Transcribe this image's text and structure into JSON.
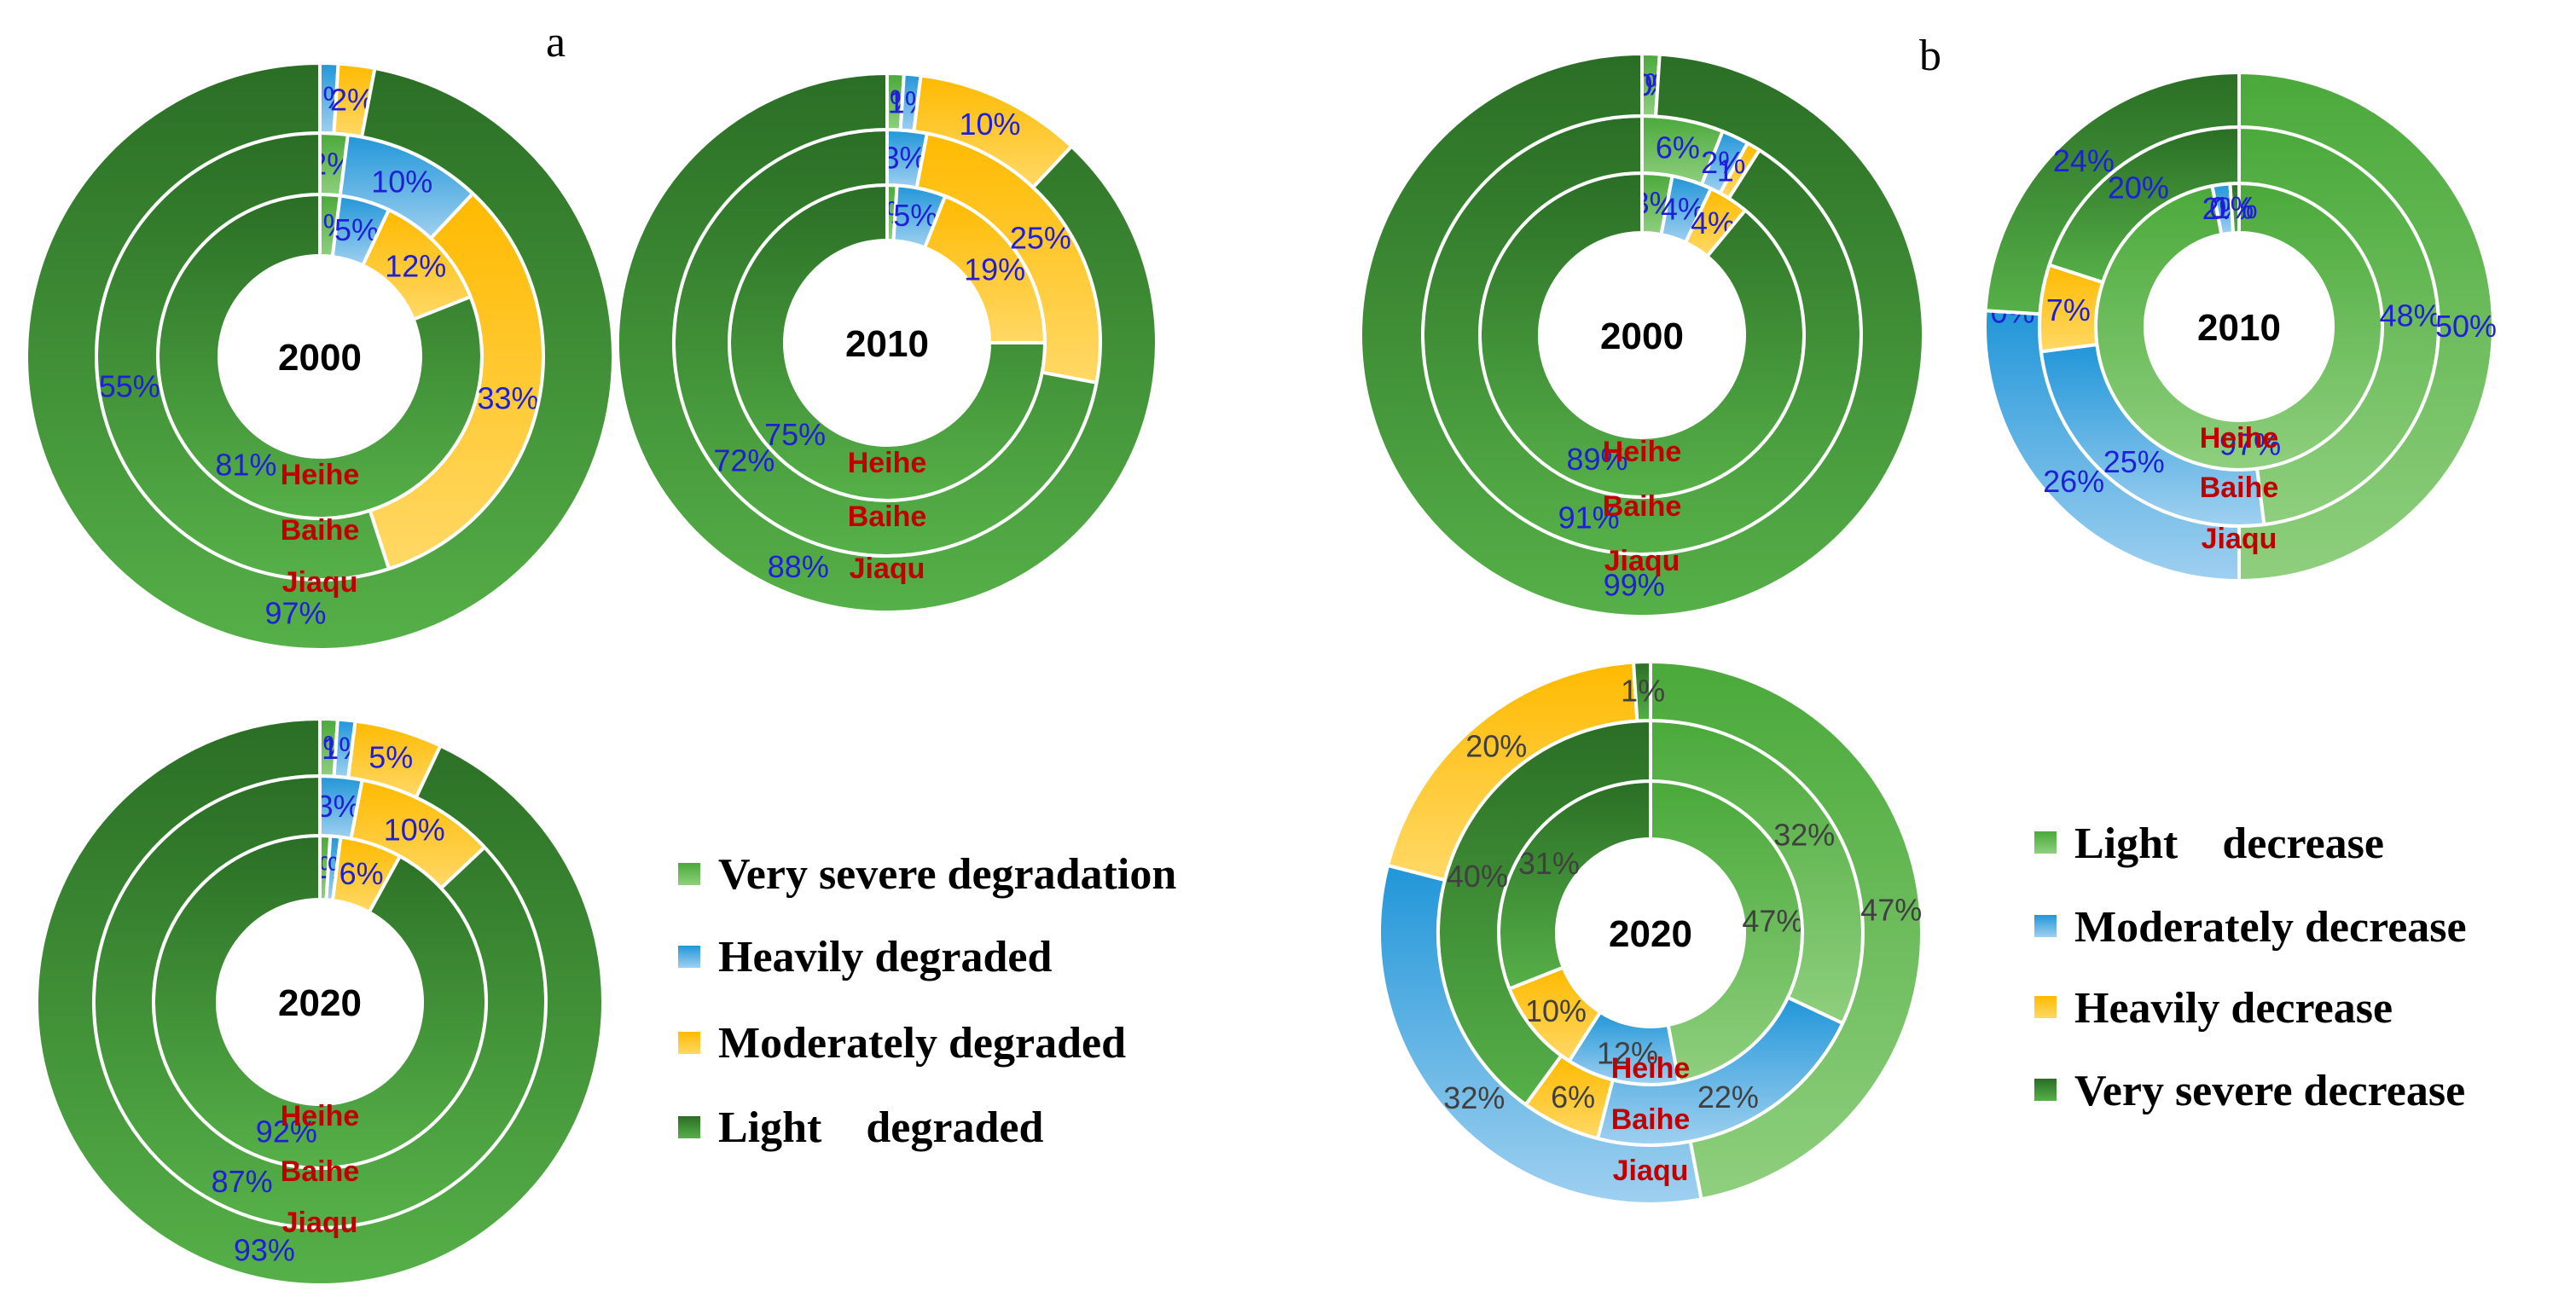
{
  "panel_labels": [
    "a",
    "b"
  ],
  "colors": {
    "light_green": "#5fb04a",
    "blue": "#46a3db",
    "yellow": "#ffc20e",
    "dark_green": "#2e7a2c",
    "region_text": "#c00000",
    "pct_blue": "#1f1fd6",
    "pct_dark": "#404040"
  },
  "legend_a": [
    "Very severe degradation",
    "Heavily degraded",
    "Moderately degraded",
    "Light    degraded"
  ],
  "legend_b": [
    "Light    decrease",
    "Moderately decrease",
    "Heavily decrease",
    "Very severe decrease"
  ],
  "chart_data": [
    {
      "type": "pie",
      "panel": "a",
      "center_label": "2000",
      "categories": [
        "Very severe degradation",
        "Heavily degraded",
        "Moderately degraded",
        "Light    degraded"
      ],
      "series": [
        {
          "name": "Heihe",
          "values": [
            2,
            5,
            12,
            81
          ],
          "labels": [
            "2%",
            "5%",
            "12%",
            "81%"
          ]
        },
        {
          "name": "Baihe",
          "values": [
            2,
            10,
            33,
            55
          ],
          "labels": [
            "2%",
            "10%",
            "33%",
            "55%"
          ]
        },
        {
          "name": "Jiaqu",
          "values": [
            0,
            1,
            2,
            97
          ],
          "labels": [
            "0%",
            "1%",
            "2%",
            "97%"
          ]
        }
      ]
    },
    {
      "type": "pie",
      "panel": "a",
      "center_label": "2010",
      "categories": [
        "Very severe degradation",
        "Heavily degraded",
        "Moderately degraded",
        "Light    degraded"
      ],
      "series": [
        {
          "name": "Heihe",
          "values": [
            1,
            5,
            19,
            75
          ],
          "labels": [
            "1%",
            "5%",
            "19%",
            "75%"
          ]
        },
        {
          "name": "Baihe",
          "values": [
            0,
            3,
            25,
            72
          ],
          "labels": [
            "0%",
            "3%",
            "25%",
            "72%"
          ]
        },
        {
          "name": "Jiaqu",
          "values": [
            1,
            1,
            10,
            88
          ],
          "labels": [
            "1%",
            "1%",
            "10%",
            "88%"
          ]
        }
      ]
    },
    {
      "type": "pie",
      "panel": "a",
      "center_label": "2020",
      "categories": [
        "Very severe degradation",
        "Heavily degraded",
        "Moderately degraded",
        "Light    degraded"
      ],
      "series": [
        {
          "name": "Heihe",
          "values": [
            1,
            1,
            6,
            92
          ],
          "labels": [
            "1%",
            "1%",
            "6%",
            "92%"
          ]
        },
        {
          "name": "Baihe",
          "values": [
            0,
            3,
            10,
            87
          ],
          "labels": [
            "0%",
            "3%",
            "10%",
            "87%"
          ]
        },
        {
          "name": "Jiaqu",
          "values": [
            1,
            1,
            5,
            93
          ],
          "labels": [
            "1%",
            "1%",
            "5%",
            "93%"
          ]
        }
      ]
    },
    {
      "type": "pie",
      "panel": "b",
      "center_label": "2000",
      "categories": [
        "Light    decrease",
        "Moderately decrease",
        "Heavily decrease",
        "Very severe decrease"
      ],
      "series": [
        {
          "name": "Heihe",
          "values": [
            3,
            4,
            4,
            89
          ],
          "labels": [
            "3%",
            "4%",
            "4%",
            "89%"
          ]
        },
        {
          "name": "Baihe",
          "values": [
            6,
            2,
            1,
            91
          ],
          "labels": [
            "6%",
            "2%",
            "1%",
            "91%"
          ]
        },
        {
          "name": "Jiaqu",
          "values": [
            1,
            0,
            0,
            99
          ],
          "labels": [
            "1%",
            "0%",
            "0%",
            "99%"
          ]
        }
      ]
    },
    {
      "type": "pie",
      "panel": "b",
      "center_label": "2010",
      "categories": [
        "Light    decrease",
        "Moderately decrease",
        "Heavily decrease",
        "Very severe decrease"
      ],
      "series": [
        {
          "name": "Heihe",
          "values": [
            97,
            2,
            0,
            1
          ],
          "labels": [
            "97%",
            "2%",
            "0%",
            "1%"
          ]
        },
        {
          "name": "Baihe",
          "values": [
            48,
            25,
            7,
            20
          ],
          "labels": [
            "48%",
            "25%",
            "7%",
            "20%"
          ]
        },
        {
          "name": "Jiaqu",
          "values": [
            50,
            26,
            0,
            24
          ],
          "labels": [
            "50%",
            "26%",
            "0%",
            "24%"
          ]
        }
      ]
    },
    {
      "type": "pie",
      "panel": "b",
      "center_label": "2020",
      "categories": [
        "Light    decrease",
        "Moderately decrease",
        "Heavily decrease",
        "Very severe decrease"
      ],
      "series": [
        {
          "name": "Heihe",
          "values": [
            47,
            12,
            10,
            31
          ],
          "labels": [
            "47%",
            "12%",
            "10%",
            "31%"
          ]
        },
        {
          "name": "Baihe",
          "values": [
            32,
            22,
            6,
            40
          ],
          "labels": [
            "32%",
            "22%",
            "6%",
            "40%"
          ]
        },
        {
          "name": "Jiaqu",
          "values": [
            47,
            32,
            20,
            1
          ],
          "labels": [
            "47%",
            "32%",
            "20%",
            "1%"
          ]
        }
      ]
    }
  ]
}
